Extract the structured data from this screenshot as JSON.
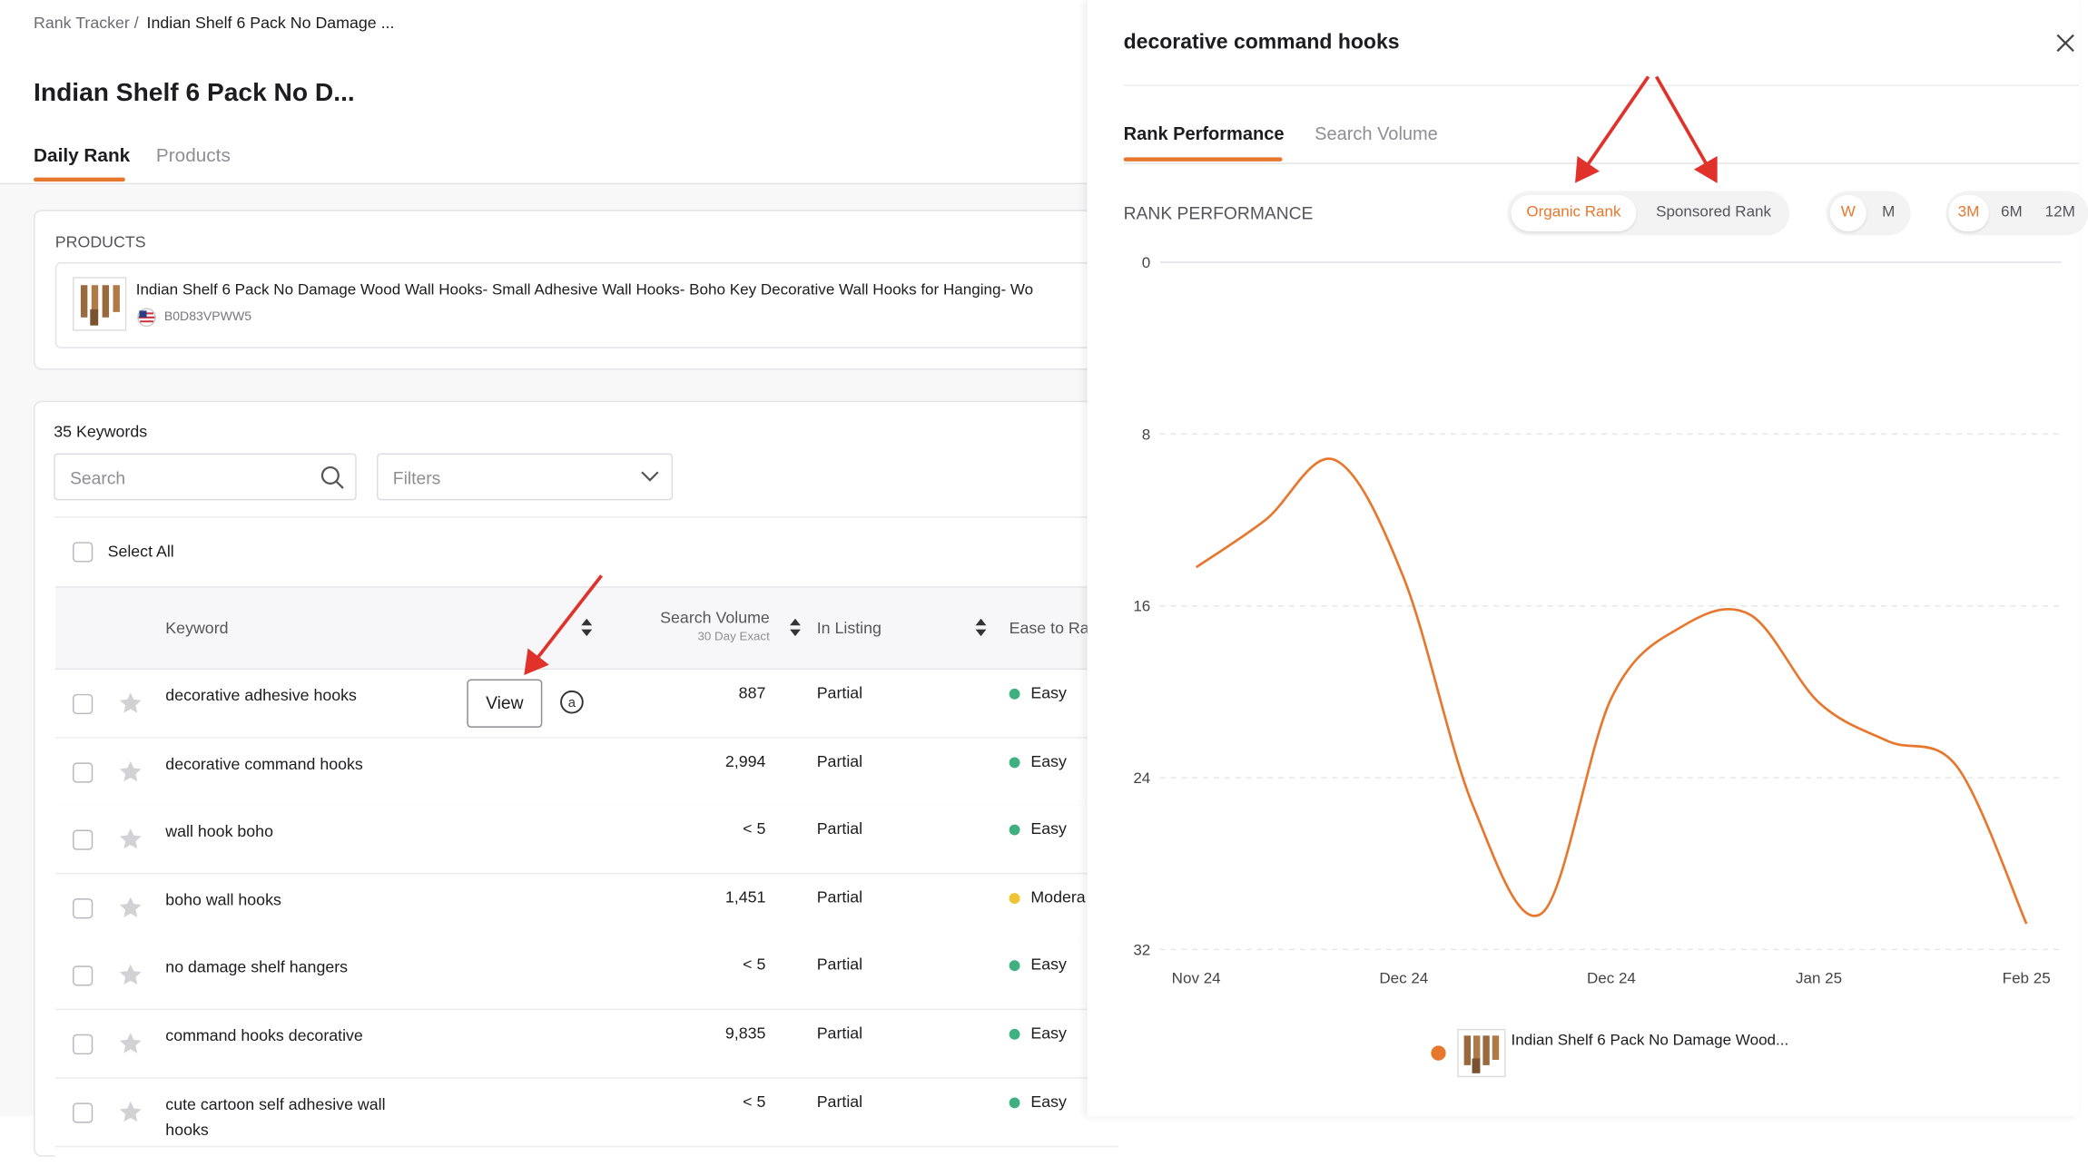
{
  "breadcrumb": {
    "parent": "Rank Tracker /",
    "current": "Indian Shelf 6 Pack No Damage ..."
  },
  "title": "Indian Shelf 6 Pack No D...",
  "tabs": [
    "Daily Rank",
    "Products"
  ],
  "products": {
    "label": "PRODUCTS",
    "items": [
      {
        "title": "Indian Shelf 6 Pack No Damage Wood Wall Hooks- Small Adhesive Wall Hooks- Boho Key Decorative Wall Hooks for Hanging- Wo",
        "asin": "B0D83VPWW5"
      }
    ]
  },
  "keywords": {
    "count": "35 Keywords",
    "search_placeholder": "Search",
    "filters_placeholder": "Filters",
    "select_all": "Select All",
    "columns": {
      "keyword": "Keyword",
      "search_volume": "Search Volume",
      "search_volume_sub": "30 Day Exact",
      "in_listing": "In Listing",
      "ease": "Ease to Ra"
    },
    "view_button": "View",
    "rows": [
      {
        "keyword": "decorative adhesive hooks",
        "search_volume": "887",
        "in_listing": "Partial",
        "ease": "Easy",
        "ease_color": "#3fb07f"
      },
      {
        "keyword": "decorative command hooks",
        "search_volume": "2,994",
        "in_listing": "Partial",
        "ease": "Easy",
        "ease_color": "#3fb07f"
      },
      {
        "keyword": "wall hook boho",
        "search_volume": "< 5",
        "in_listing": "Partial",
        "ease": "Easy",
        "ease_color": "#3fb07f"
      },
      {
        "keyword": "boho wall hooks",
        "search_volume": "1,451",
        "in_listing": "Partial",
        "ease": "Modera",
        "ease_color": "#f0c330"
      },
      {
        "keyword": "no damage shelf hangers",
        "search_volume": "< 5",
        "in_listing": "Partial",
        "ease": "Easy",
        "ease_color": "#3fb07f"
      },
      {
        "keyword": "command hooks decorative",
        "search_volume": "9,835",
        "in_listing": "Partial",
        "ease": "Easy",
        "ease_color": "#3fb07f"
      },
      {
        "keyword": "cute cartoon self adhesive wall hooks",
        "search_volume": "< 5",
        "in_listing": "Partial",
        "ease": "Easy",
        "ease_color": "#3fb07f"
      }
    ]
  },
  "panel": {
    "title": "decorative command hooks",
    "tabs": [
      "Rank Performance",
      "Search Volume"
    ],
    "section_title": "RANK PERFORMANCE",
    "rank_types": [
      "Organic Rank",
      "Sponsored Rank"
    ],
    "rank_type_active": 0,
    "intervals": [
      "W",
      "M"
    ],
    "interval_active": 0,
    "ranges": [
      "3M",
      "6M",
      "12M"
    ],
    "range_active": 0,
    "chart": {
      "type": "line",
      "x": [
        "Nov 24",
        null,
        null,
        "Dec 24",
        null,
        null,
        "Dec 24",
        null,
        null,
        "Jan 25",
        null,
        null,
        "Feb 25"
      ],
      "series": [
        {
          "name": "Indian Shelf 6 Pack No Damage Wood...",
          "color": "#e8772e",
          "values": [
            14.2,
            12,
            9.2,
            14.7,
            25.3,
            30.3,
            20.3,
            17,
            16.4,
            20.5,
            22.3,
            23.5,
            30.8
          ]
        }
      ],
      "ylim": [
        0,
        32
      ],
      "yticks": [
        0,
        8,
        16,
        24,
        32
      ],
      "y_inverted": true,
      "grid": true
    }
  }
}
